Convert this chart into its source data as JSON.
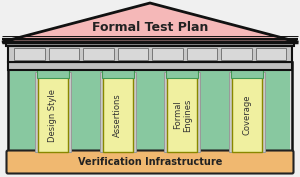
{
  "title": "Formal Test Plan",
  "base_label": "Verification Infrastructure",
  "pillars": [
    "Design Style",
    "Assertions",
    "Formal\nEngines",
    "Coverage"
  ],
  "bg_color": "#f0f0f0",
  "roof_color": "#f5b8b8",
  "roof_edge_color": "#111111",
  "frieze_bg": "#cccccc",
  "frieze_box_color": "#dddddd",
  "frieze_box_edge": "#555555",
  "entablature_color": "#bbbbbb",
  "pillar_yellow": "#f0f0a0",
  "pillar_green_bg": "#88c8a0",
  "pillar_gray": "#c8c8c8",
  "base_color": "#f0b870",
  "base_edge_color": "#222222",
  "outer_wall_color": "#e0e0e0",
  "outer_wall_edge": "#111111",
  "white": "#ffffff"
}
